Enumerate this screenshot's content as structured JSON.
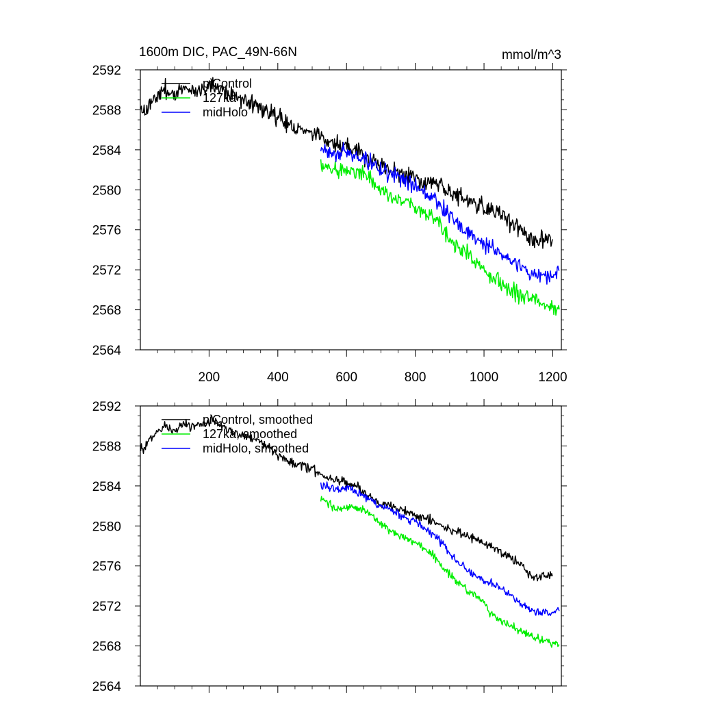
{
  "chart_data": [
    {
      "type": "line",
      "title": "1600m DIC, PAC_49N-66N",
      "units": "mmol/m^3",
      "xlim": [
        0,
        1225
      ],
      "ylim": [
        2564,
        2592
      ],
      "xticks": [
        200,
        400,
        600,
        800,
        1000,
        1200
      ],
      "xtick_labels_shown": true,
      "yticks": [
        2564,
        2568,
        2572,
        2576,
        2580,
        2584,
        2588,
        2592
      ],
      "legend_position": "top-left",
      "series": [
        {
          "name": "piControl",
          "color": "#000000",
          "x": [
            1,
            10,
            30,
            50,
            70,
            100,
            130,
            160,
            190,
            210,
            250,
            300,
            350,
            400,
            450,
            500,
            550,
            600,
            650,
            700,
            750,
            800,
            850,
            900,
            950,
            1000,
            1050,
            1100,
            1130,
            1150,
            1170,
            1190,
            1200
          ],
          "y": [
            2588.0,
            2587.6,
            2588.9,
            2589.4,
            2590.0,
            2589.5,
            2590.2,
            2589.8,
            2590.4,
            2590.6,
            2589.8,
            2589.0,
            2588.4,
            2587.2,
            2586.2,
            2585.7,
            2584.8,
            2584.4,
            2583.4,
            2582.2,
            2581.8,
            2581.0,
            2580.6,
            2579.6,
            2579.0,
            2578.3,
            2577.4,
            2576.4,
            2575.2,
            2574.8,
            2575.2,
            2575.0,
            2575.6
          ],
          "noise": 0.55
        },
        {
          "name": "127ka",
          "color": "#00ee00",
          "x": [
            525,
            550,
            575,
            600,
            650,
            700,
            750,
            800,
            850,
            900,
            950,
            1000,
            1020,
            1050,
            1100,
            1150,
            1200,
            1220
          ],
          "y": [
            2582.8,
            2582.2,
            2581.6,
            2581.9,
            2581.6,
            2580.2,
            2579.0,
            2578.3,
            2577.2,
            2575.0,
            2573.6,
            2572.4,
            2571.2,
            2570.6,
            2569.6,
            2568.8,
            2568.2,
            2568.3
          ],
          "noise": 0.5
        },
        {
          "name": "midHolo",
          "color": "#0000ff",
          "x": [
            525,
            550,
            575,
            600,
            650,
            700,
            750,
            800,
            850,
            900,
            950,
            1000,
            1050,
            1100,
            1150,
            1200,
            1220
          ],
          "y": [
            2584.2,
            2583.8,
            2583.6,
            2583.8,
            2583.0,
            2582.0,
            2581.2,
            2580.4,
            2579.3,
            2577.4,
            2575.6,
            2574.6,
            2573.8,
            2572.5,
            2571.4,
            2571.2,
            2571.8
          ],
          "noise": 0.5
        }
      ]
    },
    {
      "type": "line",
      "title": "",
      "units": "",
      "xlim": [
        0,
        1225
      ],
      "ylim": [
        2564,
        2592
      ],
      "xticks": [
        200,
        400,
        600,
        800,
        1000,
        1200
      ],
      "xtick_labels_shown": false,
      "yticks": [
        2564,
        2568,
        2572,
        2576,
        2580,
        2584,
        2588,
        2592
      ],
      "legend_position": "top-left",
      "series": [
        {
          "name": "piControl, smoothed",
          "color": "#000000",
          "x": [
            1,
            10,
            30,
            50,
            70,
            100,
            130,
            160,
            190,
            210,
            250,
            300,
            350,
            400,
            450,
            500,
            550,
            600,
            650,
            700,
            750,
            800,
            850,
            900,
            950,
            1000,
            1050,
            1100,
            1130,
            1150,
            1170,
            1190,
            1200
          ],
          "y": [
            2588.0,
            2587.6,
            2588.9,
            2589.4,
            2590.0,
            2589.5,
            2590.2,
            2589.8,
            2590.4,
            2590.6,
            2589.8,
            2589.0,
            2588.4,
            2587.2,
            2586.2,
            2585.7,
            2584.8,
            2584.4,
            2583.4,
            2582.2,
            2581.8,
            2581.0,
            2580.6,
            2579.6,
            2579.0,
            2578.3,
            2577.4,
            2576.4,
            2575.2,
            2574.8,
            2575.2,
            2575.0,
            2575.4
          ],
          "noise": 0.28
        },
        {
          "name": "127ka, smoothed",
          "color": "#00ee00",
          "x": [
            525,
            550,
            575,
            600,
            650,
            700,
            750,
            800,
            850,
            900,
            950,
            1000,
            1020,
            1050,
            1100,
            1150,
            1200,
            1220
          ],
          "y": [
            2582.8,
            2582.2,
            2581.6,
            2581.9,
            2581.6,
            2580.2,
            2579.0,
            2578.3,
            2577.2,
            2575.0,
            2573.6,
            2572.4,
            2571.2,
            2570.6,
            2569.6,
            2568.8,
            2568.2,
            2568.2
          ],
          "noise": 0.25
        },
        {
          "name": "midHolo, smoothed",
          "color": "#0000ff",
          "x": [
            525,
            550,
            575,
            600,
            650,
            700,
            750,
            800,
            850,
            900,
            950,
            1000,
            1050,
            1100,
            1150,
            1200,
            1220
          ],
          "y": [
            2584.2,
            2583.8,
            2583.6,
            2583.8,
            2583.0,
            2582.0,
            2581.2,
            2580.4,
            2579.3,
            2577.4,
            2575.6,
            2574.6,
            2573.8,
            2572.5,
            2571.4,
            2571.2,
            2571.8
          ],
          "noise": 0.25
        }
      ]
    }
  ]
}
